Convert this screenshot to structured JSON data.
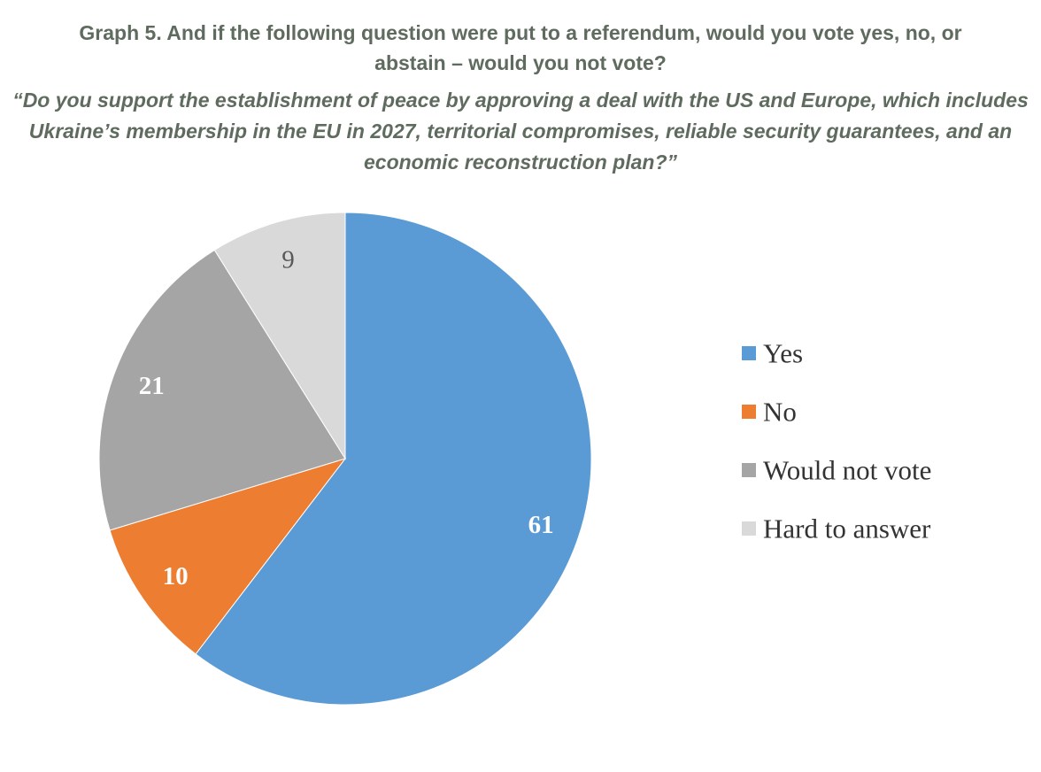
{
  "chart_data": {
    "type": "pie",
    "title_line1": "Graph 5. And if the following question were put to a referendum, would you vote yes, no, or",
    "title_line2": "abstain – would you not vote?",
    "subtitle": "“Do you support the establishment of peace by approving a deal with the US and Europe, which includes Ukraine’s membership in the EU in 2027, territorial compromises, reliable security guarantees, and an economic reconstruction plan?”",
    "categories": [
      "Yes",
      "No",
      "Would not vote",
      "Hard to answer"
    ],
    "values": [
      61,
      10,
      21,
      9
    ],
    "colors": [
      "#5b9bd5",
      "#ed7d31",
      "#a5a5a5",
      "#d9d9d9"
    ],
    "label_colors": [
      "#ffffff",
      "#ffffff",
      "#ffffff",
      "#595959"
    ],
    "start_angle_deg": 0,
    "direction": "clockwise",
    "legend_position": "right"
  }
}
